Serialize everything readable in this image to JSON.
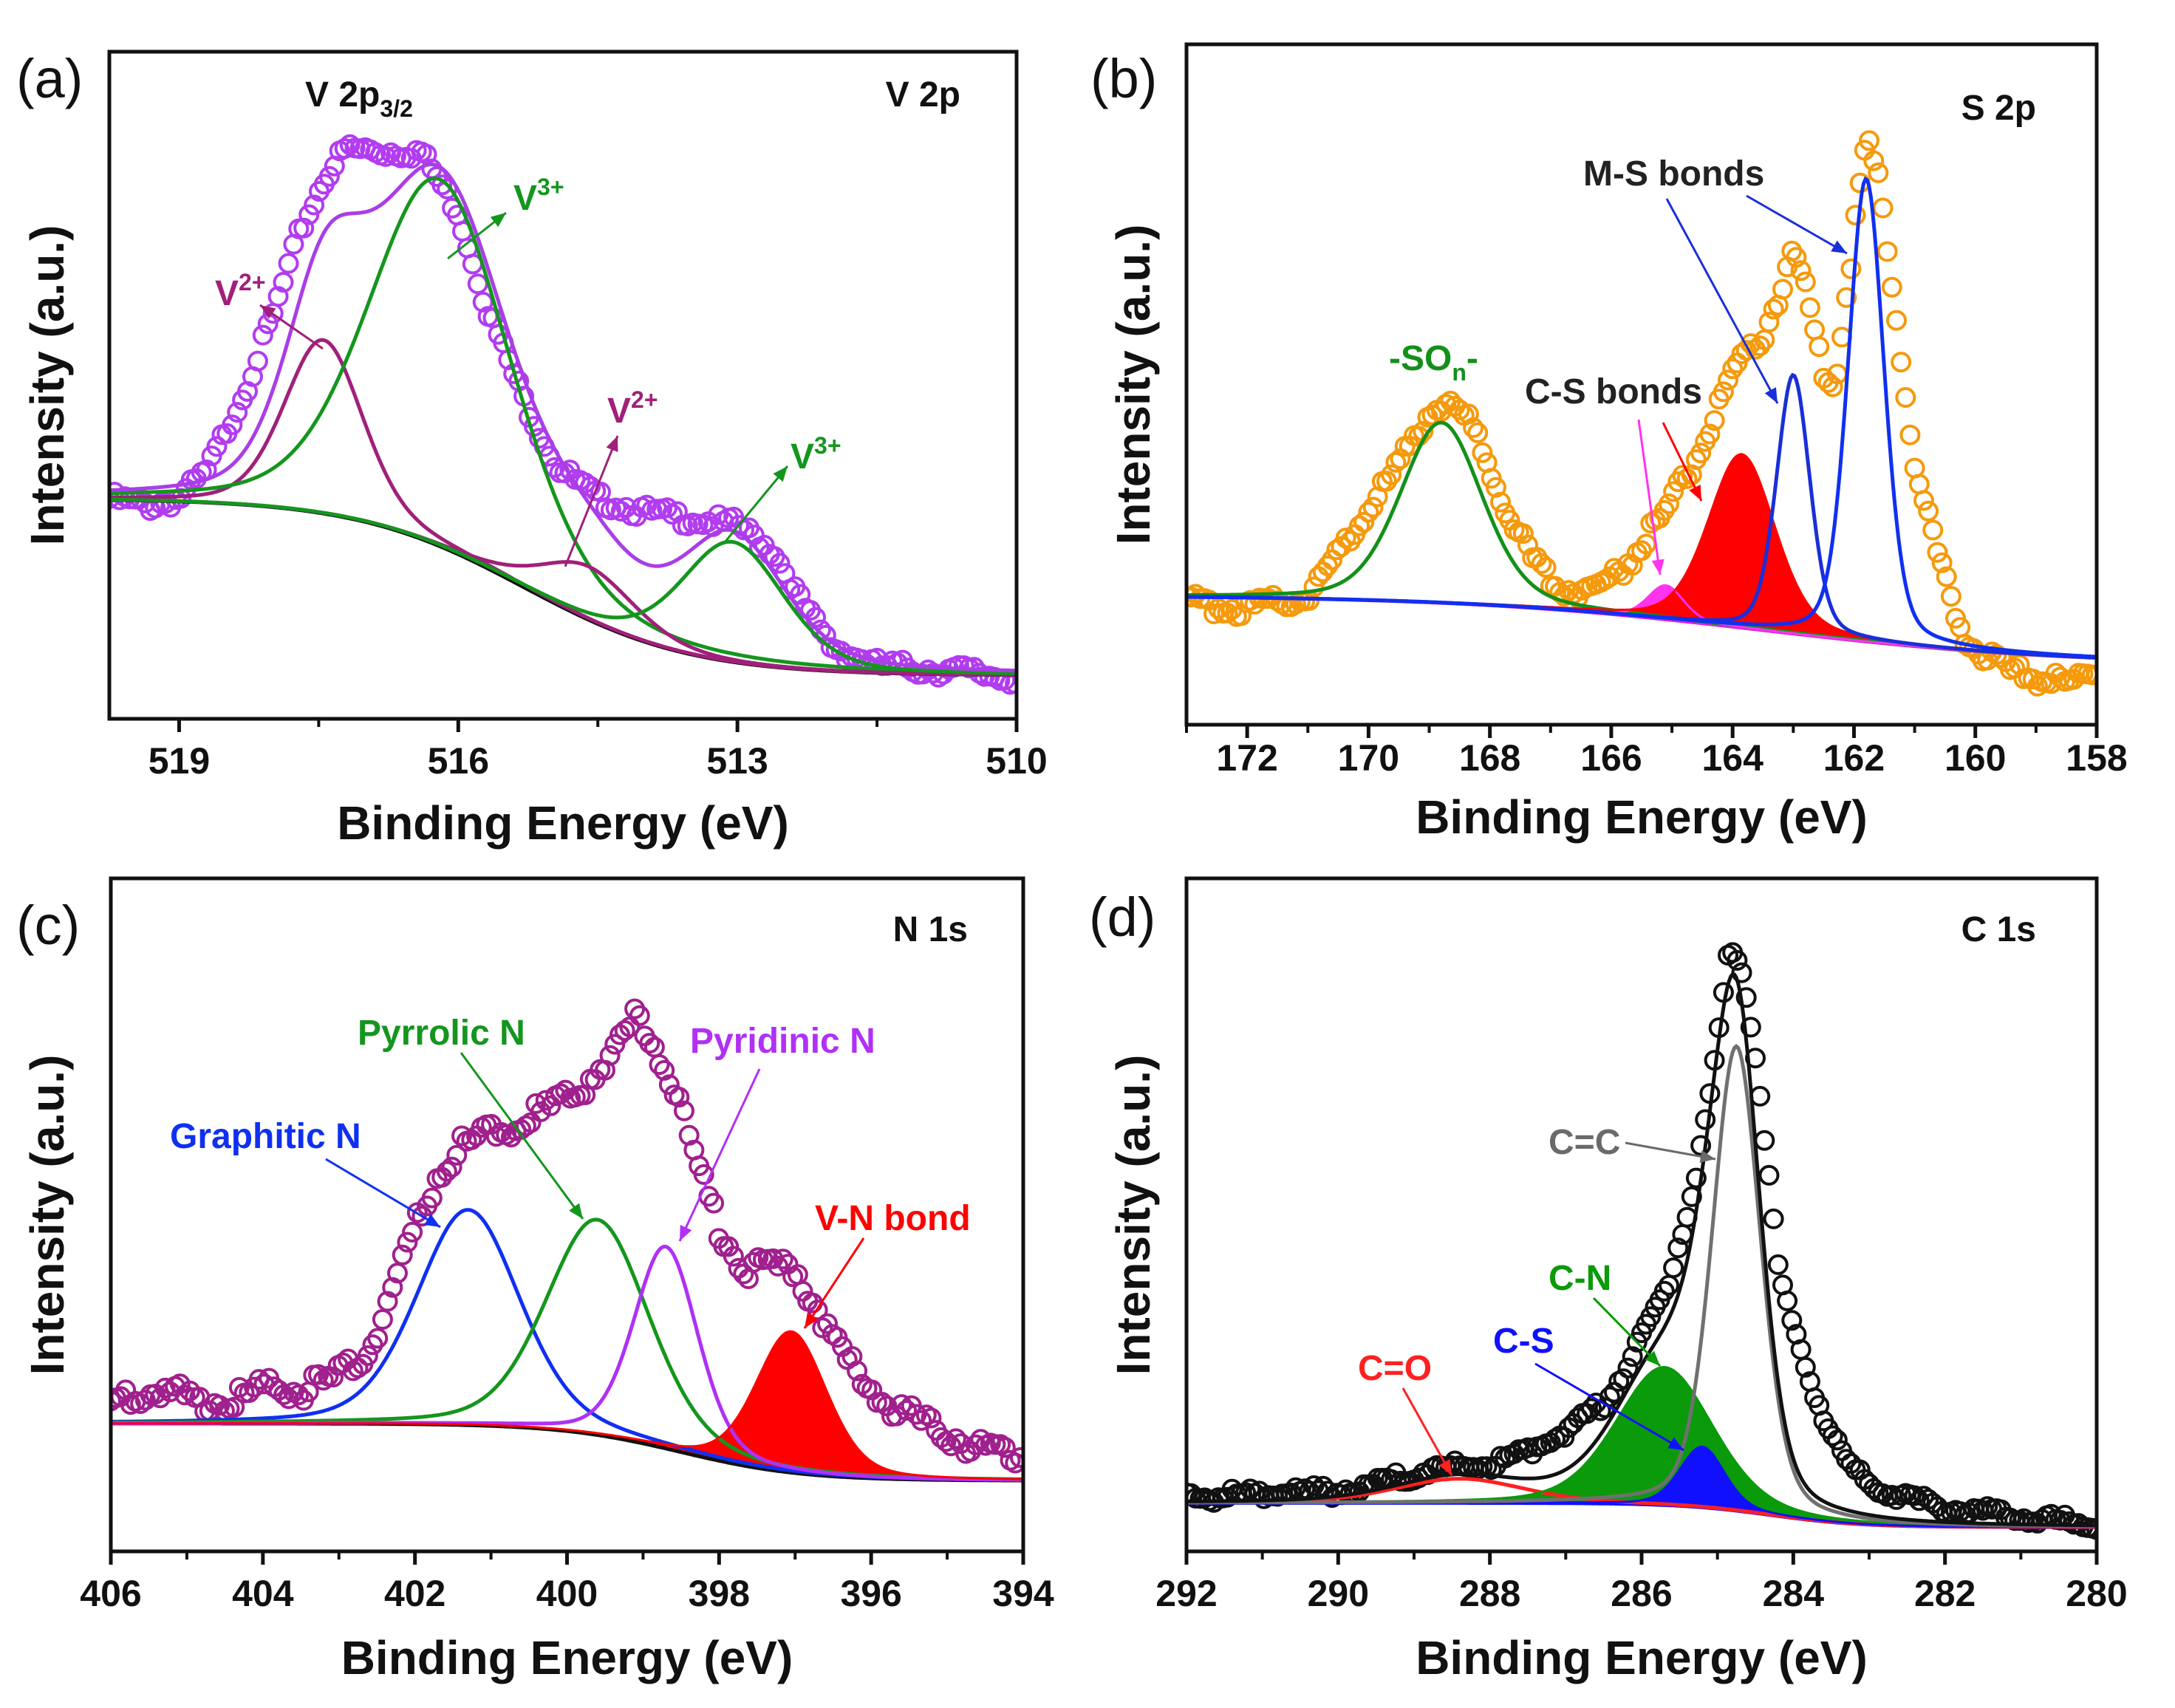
{
  "chart_data": [
    {
      "type": "line",
      "panel_label": "(a)",
      "title": "V 2p",
      "xlabel": "Binding Energy (eV)",
      "ylabel": "Intensity (a.u.)",
      "xlim": [
        519.75,
        510
      ],
      "ylim": [
        0,
        1
      ],
      "xticks": [
        519,
        516,
        513,
        510
      ],
      "xtick_labels": [
        "519",
        "516",
        "513",
        "510"
      ],
      "minor_xticks": [
        517.5,
        514.5,
        511.5
      ],
      "grid": false,
      "colors": {
        "measured": "#b23cf0",
        "envelope": "#a93ee6",
        "background": "#111111"
      },
      "measured": {
        "x": [
          519.75,
          519.3,
          519,
          518.7,
          518.3,
          518,
          517.7,
          517.4,
          517.2,
          516.8,
          516.4,
          516,
          515.7,
          515.3,
          514.95,
          514.5,
          514,
          513.5,
          513,
          512.6,
          512.3,
          512,
          511.5,
          510.5,
          510
        ],
        "y": [
          0.33,
          0.32,
          0.33,
          0.37,
          0.49,
          0.6,
          0.73,
          0.82,
          0.855,
          0.85,
          0.85,
          0.76,
          0.62,
          0.48,
          0.38,
          0.33,
          0.31,
          0.3,
          0.29,
          0.25,
          0.17,
          0.11,
          0.08,
          0.07,
          0.06
        ]
      },
      "background": {
        "high": 0.33,
        "low": 0.065,
        "center": 515.3,
        "width": 0.9
      },
      "envelope_line": true,
      "components": [
        {
          "label": "V2+",
          "center": 517.45,
          "amplitude": 0.26,
          "fwhm": 1.0,
          "color": "#a0207a",
          "fill": false
        },
        {
          "label": "V3+",
          "center": 516.2,
          "amplitude": 0.55,
          "fwhm": 1.8,
          "color": "#14961e",
          "fill": false
        },
        {
          "label": "V2+",
          "center": 514.6,
          "amplitude": 0.08,
          "fwhm": 1.2,
          "color": "#a0207a",
          "fill": false
        },
        {
          "label": "V3+",
          "center": 513.05,
          "amplitude": 0.18,
          "fwhm": 1.3,
          "color": "#14961e",
          "fill": false
        }
      ],
      "annotations": [
        {
          "text": "V 2p",
          "sub": "3/2",
          "color": "#111111"
        },
        {
          "text": "V",
          "sup": "2+",
          "color": "#a0207a"
        },
        {
          "text": "V",
          "sup": "3+",
          "color": "#14961e"
        },
        {
          "text": "V",
          "sup": "2+",
          "color": "#a0207a"
        },
        {
          "text": "V",
          "sup": "3+",
          "color": "#14961e"
        }
      ]
    },
    {
      "type": "line",
      "panel_label": "(b)",
      "title": "S 2p",
      "xlabel": "Binding Energy (eV)",
      "ylabel": "Intensity (a.u.)",
      "xlim": [
        173,
        158
      ],
      "ylim": [
        0,
        1
      ],
      "xticks": [
        172,
        170,
        168,
        166,
        164,
        162,
        160,
        158
      ],
      "xtick_labels": [
        "172",
        "170",
        "168",
        "166",
        "164",
        "162",
        "160",
        "158"
      ],
      "minor_xticks": [
        173,
        171,
        169,
        167,
        165,
        163,
        161,
        159
      ],
      "grid": false,
      "colors": {
        "measured": "#f59a0c",
        "envelope": "#f59a0c",
        "background": "#e020e0"
      },
      "measured": {
        "x": [
          173,
          172,
          171,
          170.5,
          170,
          169.5,
          169,
          168.7,
          168.3,
          168,
          167.6,
          167.2,
          166.8,
          166.3,
          165.8,
          165.3,
          165,
          164.6,
          164.2,
          163.9,
          163.5,
          163.2,
          163.0,
          162.8,
          162.5,
          162.3,
          162.0,
          161.8,
          161.6,
          161.3,
          161.0,
          160.6,
          160.2,
          159.5,
          158.5,
          158
        ],
        "y": [
          0.18,
          0.17,
          0.19,
          0.25,
          0.32,
          0.38,
          0.46,
          0.48,
          0.44,
          0.38,
          0.29,
          0.23,
          0.2,
          0.2,
          0.23,
          0.29,
          0.33,
          0.39,
          0.47,
          0.53,
          0.57,
          0.64,
          0.7,
          0.64,
          0.52,
          0.5,
          0.72,
          0.86,
          0.8,
          0.6,
          0.38,
          0.24,
          0.13,
          0.08,
          0.06,
          0.08
        ]
      },
      "background": {
        "high": 0.19,
        "low": 0.088,
        "center": 163.5,
        "width": 2.5
      },
      "envelope_line": false,
      "components": [
        {
          "label": "-SOn-",
          "center": 168.8,
          "amplitude": 0.265,
          "fwhm": 1.6,
          "color": "#14901a",
          "fill": false
        },
        {
          "label": "C-S bonds",
          "center": 165.1,
          "amplitude": 0.05,
          "fwhm": 0.7,
          "color": "#ff33ee",
          "fill": true
        },
        {
          "label": "C-S bonds",
          "center": 163.85,
          "amplitude": 0.255,
          "fwhm": 1.3,
          "color": "#ff0000",
          "fill": true
        },
        {
          "label": "M-S bonds",
          "center": 163.0,
          "amplitude": 0.38,
          "fwhm": 0.65,
          "color": "#1a2fd8",
          "fill": false
        },
        {
          "label": "M-S bonds",
          "center": 161.8,
          "amplitude": 0.68,
          "fwhm": 0.7,
          "color": "#1030f0",
          "fill": false
        }
      ],
      "annotations": [
        {
          "text": "M-S bonds",
          "color": "#222222"
        },
        {
          "text": "C-S bonds",
          "color": "#222222"
        },
        {
          "text": "-SO",
          "sub": "n",
          "suffix": "-",
          "color": "#14901a"
        }
      ]
    },
    {
      "type": "line",
      "panel_label": "(c)",
      "title": "N 1s",
      "xlabel": "Binding Energy (eV)",
      "ylabel": "Intensity (a.u.)",
      "xlim": [
        406,
        394
      ],
      "ylim": [
        0,
        1
      ],
      "xticks": [
        406,
        404,
        402,
        400,
        398,
        396,
        394
      ],
      "xtick_labels": [
        "406",
        "404",
        "402",
        "400",
        "398",
        "396",
        "394"
      ],
      "minor_xticks": [
        405,
        403,
        401,
        399,
        397,
        395
      ],
      "grid": false,
      "colors": {
        "measured": "#a0208e",
        "envelope": "#a0208e",
        "background": "#111111"
      },
      "measured": {
        "x": [
          406,
          405.5,
          405,
          404.5,
          404,
          403.5,
          403,
          402.6,
          402.3,
          402,
          401.7,
          401.4,
          401,
          400.6,
          400.2,
          399.8,
          399.4,
          399.1,
          398.9,
          398.6,
          398.3,
          398,
          397.7,
          397.3,
          397,
          396.7,
          396.3,
          395.8,
          395.3,
          394.5,
          394
        ],
        "y": [
          0.22,
          0.24,
          0.23,
          0.22,
          0.24,
          0.24,
          0.26,
          0.3,
          0.38,
          0.48,
          0.56,
          0.6,
          0.62,
          0.64,
          0.66,
          0.69,
          0.74,
          0.79,
          0.76,
          0.7,
          0.58,
          0.48,
          0.42,
          0.42,
          0.42,
          0.36,
          0.28,
          0.22,
          0.19,
          0.15,
          0.14
        ]
      },
      "background": {
        "high": 0.19,
        "low": 0.105,
        "center": 398.5,
        "width": 0.8
      },
      "envelope_line": false,
      "components": [
        {
          "label": "Graphitic N",
          "center": 401.3,
          "amplitude": 0.32,
          "fwhm": 1.6,
          "color": "#1030f0",
          "fill": false
        },
        {
          "label": "Pyrrolic N",
          "center": 399.6,
          "amplitude": 0.32,
          "fwhm": 1.6,
          "color": "#14961e",
          "fill": false
        },
        {
          "label": "Pyridinic N",
          "center": 398.7,
          "amplitude": 0.3,
          "fwhm": 1.0,
          "color": "#b030f5",
          "fill": false
        },
        {
          "label": "V-N bond",
          "center": 397.05,
          "amplitude": 0.21,
          "fwhm": 1.1,
          "color": "#ff0000",
          "fill": true
        }
      ],
      "annotations": [
        {
          "text": "Graphitic N",
          "color": "#1030f0"
        },
        {
          "text": "Pyrrolic N",
          "color": "#14961e"
        },
        {
          "text": "Pyridinic N",
          "color": "#b030f5"
        },
        {
          "text": "V-N bond",
          "color": "#ff0000"
        }
      ]
    },
    {
      "type": "line",
      "panel_label": "(d)",
      "title": "C 1s",
      "xlabel": "Binding Energy (eV)",
      "ylabel": "Intensity (a.u.)",
      "xlim": [
        292,
        280
      ],
      "ylim": [
        0,
        1
      ],
      "xticks": [
        292,
        290,
        288,
        286,
        284,
        282,
        280
      ],
      "xtick_labels": [
        "292",
        "290",
        "288",
        "286",
        "284",
        "282",
        "280"
      ],
      "minor_xticks": [
        291,
        289,
        287,
        285,
        283,
        281
      ],
      "grid": false,
      "colors": {
        "measured": "#111111",
        "envelope": "#111111",
        "background": "#1010ff"
      },
      "measured": {
        "x": [
          292,
          291,
          290,
          289.5,
          289,
          288.5,
          288,
          287.5,
          287,
          286.5,
          286.2,
          286,
          285.7,
          285.5,
          285.3,
          285.1,
          284.95,
          284.85,
          284.7,
          284.55,
          284.4,
          284.2,
          284,
          283.8,
          283.6,
          283.3,
          283,
          282.5,
          282,
          281,
          280.5,
          280
        ],
        "y": [
          0.08,
          0.085,
          0.09,
          0.1,
          0.115,
          0.125,
          0.13,
          0.15,
          0.18,
          0.22,
          0.27,
          0.32,
          0.38,
          0.46,
          0.55,
          0.68,
          0.8,
          0.89,
          0.88,
          0.78,
          0.64,
          0.42,
          0.33,
          0.26,
          0.2,
          0.13,
          0.1,
          0.08,
          0.065,
          0.05,
          0.045,
          0.04
        ]
      },
      "background": {
        "high": 0.072,
        "low": 0.036,
        "center": 284.3,
        "width": 0.6
      },
      "envelope_line": true,
      "components": [
        {
          "label": "C=O",
          "center": 288.4,
          "amplitude": 0.036,
          "fwhm": 2.0,
          "color": "#ff2020",
          "fill": false
        },
        {
          "label": "C-N",
          "center": 285.7,
          "amplitude": 0.205,
          "fwhm": 1.5,
          "color": "#0a9a0a",
          "fill": true
        },
        {
          "label": "C-S",
          "center": 285.2,
          "amplitude": 0.09,
          "fwhm": 0.7,
          "color": "#1010ff",
          "fill": true
        },
        {
          "label": "C=C",
          "center": 284.75,
          "amplitude": 0.69,
          "fwhm": 0.75,
          "color": "#707070",
          "fill": false
        }
      ],
      "annotations": [
        {
          "text": "C=C",
          "color": "#6a6a6a"
        },
        {
          "text": "C-N",
          "color": "#0a9a0a"
        },
        {
          "text": "C-S",
          "color": "#1010ff"
        },
        {
          "text": "C=O",
          "color": "#ff2020"
        }
      ]
    }
  ]
}
